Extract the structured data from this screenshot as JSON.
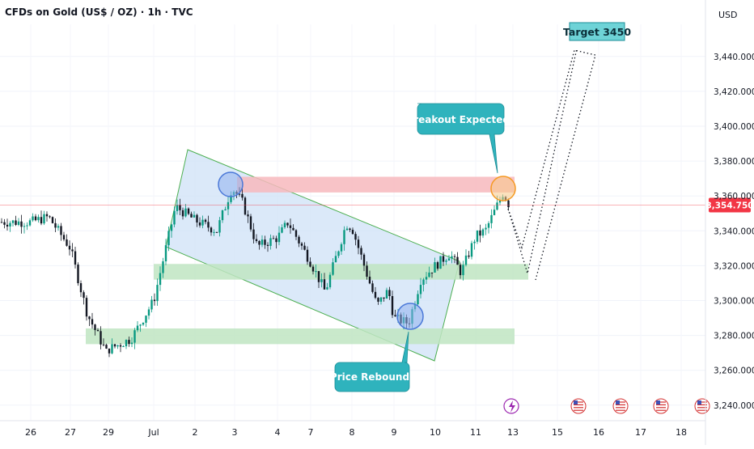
{
  "header": {
    "title": "CFDs on Gold (US$ / OZ) · 1h · TVC",
    "currency": "USD"
  },
  "colors": {
    "up": "#089981",
    "down": "#131722",
    "channel_fill": "#cfe2f7",
    "channel_line": "#4caf50",
    "resistance": "#f7b9bd",
    "support": "#bfe5c2",
    "callout": "#2fb3bd",
    "target_fill": "#6ed3d7",
    "circle_blue": "#4a78d8",
    "circle_orange": "#f59a23",
    "price_tag": "#f23645"
  },
  "chart_data": {
    "type": "candlestick",
    "y_axis": {
      "ticks": [
        "3,240.000",
        "3,260.000",
        "3,280.000",
        "3,300.000",
        "3,320.000",
        "3,340.000",
        "3,360.000",
        "3,380.000",
        "3,400.000",
        "3,420.000",
        "3,440.000"
      ],
      "ylim": [
        3233,
        3465
      ]
    },
    "x_axis": {
      "ticks": [
        "26",
        "27",
        "29",
        "Jul",
        "2",
        "3",
        "4",
        "7",
        "8",
        "9",
        "10",
        "11",
        "13",
        "15",
        "16",
        "17",
        "18"
      ]
    },
    "current_price": "3,354.750",
    "close_series_approx": [
      {
        "x": "26",
        "close": 3345
      },
      {
        "x": "27",
        "close": 3330
      },
      {
        "x": "29",
        "close": 3272
      },
      {
        "x": "Jul",
        "close": 3300
      },
      {
        "x": "2",
        "close": 3346
      },
      {
        "x": "3",
        "close": 3363
      },
      {
        "x": "4",
        "close": 3336
      },
      {
        "x": "7",
        "close": 3322
      },
      {
        "x": "8",
        "close": 3342
      },
      {
        "x": "9",
        "close": 3290
      },
      {
        "x": "10",
        "close": 3320
      },
      {
        "x": "11",
        "close": 3337
      },
      {
        "x": "13",
        "close": 3355
      }
    ],
    "zones": [
      {
        "name": "resistance",
        "from": 3362,
        "to": 3371
      },
      {
        "name": "support-upper",
        "from": 3312,
        "to": 3321
      },
      {
        "name": "support-lower",
        "from": 3275,
        "to": 3284
      }
    ],
    "annotations": {
      "breakout": "Breakout Expected",
      "rebound": "Price Rebound",
      "target": "Target 3450"
    }
  }
}
